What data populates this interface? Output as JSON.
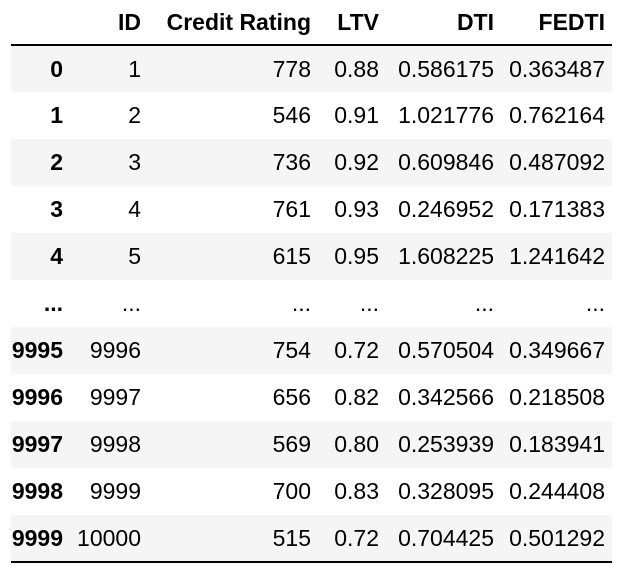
{
  "chart_data": {
    "type": "table",
    "columns": [
      "",
      "ID",
      "Credit Rating",
      "LTV",
      "DTI",
      "FEDTI"
    ],
    "rows": [
      [
        "0",
        "1",
        "778",
        "0.88",
        "0.586175",
        "0.363487"
      ],
      [
        "1",
        "2",
        "546",
        "0.91",
        "1.021776",
        "0.762164"
      ],
      [
        "2",
        "3",
        "736",
        "0.92",
        "0.609846",
        "0.487092"
      ],
      [
        "3",
        "4",
        "761",
        "0.93",
        "0.246952",
        "0.171383"
      ],
      [
        "4",
        "5",
        "615",
        "0.95",
        "1.608225",
        "1.241642"
      ],
      [
        "...",
        "...",
        "...",
        "...",
        "...",
        "..."
      ],
      [
        "9995",
        "9996",
        "754",
        "0.72",
        "0.570504",
        "0.349667"
      ],
      [
        "9996",
        "9997",
        "656",
        "0.82",
        "0.342566",
        "0.218508"
      ],
      [
        "9997",
        "9998",
        "569",
        "0.80",
        "0.253939",
        "0.183941"
      ],
      [
        "9998",
        "9999",
        "700",
        "0.83",
        "0.328095",
        "0.244408"
      ],
      [
        "9999",
        "10000",
        "515",
        "0.72",
        "0.704425",
        "0.501292"
      ]
    ],
    "layout": {
      "striped_rows": "odd",
      "alignment": "right",
      "header_rule": true,
      "bottom_rule": true
    }
  },
  "style": {
    "stripe_color": "#f5f5f5",
    "border_color": "#000000",
    "text_color": "#000000",
    "background_color": "#ffffff"
  }
}
